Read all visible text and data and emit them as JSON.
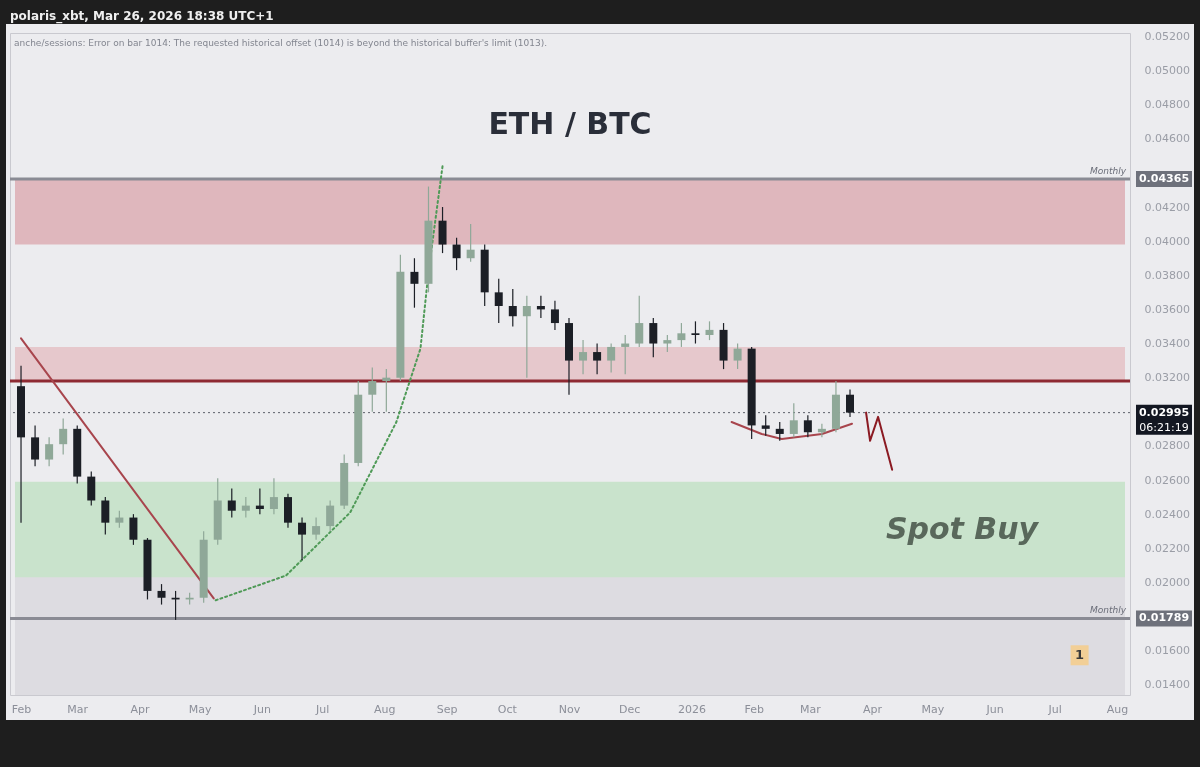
{
  "chart_data": {
    "type": "candlestick",
    "title": "ETH / BTC",
    "annotations": [
      "polaris_xbt, Mar 26, 2026 18:38 UTC+1",
      "anche/sessions: Error on bar 1014: The requested historical offset (1014) is beyond the historical buffer's limit (1013).",
      "06:21:19",
      "1",
      "Monthly",
      "Monthly"
    ],
    "x": [
      "2025-02-01",
      "2025-02-08",
      "2025-02-15",
      "2025-02-22",
      "2025-03-01",
      "2025-03-08",
      "2025-03-15",
      "2025-03-22",
      "2025-03-29",
      "2025-04-05",
      "2025-04-12",
      "2025-04-19",
      "2025-04-26",
      "2025-05-03",
      "2025-05-10",
      "2025-05-17",
      "2025-05-24",
      "2025-05-31",
      "2025-06-07",
      "2025-06-14",
      "2025-06-21",
      "2025-06-28",
      "2025-07-05",
      "2025-07-12",
      "2025-07-19",
      "2025-07-26",
      "2025-08-02",
      "2025-08-09",
      "2025-08-16",
      "2025-08-23",
      "2025-08-30",
      "2025-09-06",
      "2025-09-13",
      "2025-09-20",
      "2025-09-27",
      "2025-10-04",
      "2025-10-11",
      "2025-10-18",
      "2025-10-25",
      "2025-11-01",
      "2025-11-08",
      "2025-11-15",
      "2025-11-22",
      "2025-11-29",
      "2025-12-06",
      "2025-12-13",
      "2025-12-20",
      "2025-12-27",
      "2026-01-03",
      "2026-01-10",
      "2026-01-17",
      "2026-01-24",
      "2026-01-31",
      "2026-02-07",
      "2026-02-14",
      "2026-02-21",
      "2026-02-28",
      "2026-03-07",
      "2026-03-14",
      "2026-03-21"
    ],
    "ohlc": [
      [
        0.0315,
        0.0327,
        0.0235,
        0.0285
      ],
      [
        0.0285,
        0.0292,
        0.0268,
        0.0272
      ],
      [
        0.0272,
        0.0285,
        0.0268,
        0.0281
      ],
      [
        0.0281,
        0.0296,
        0.0275,
        0.029
      ],
      [
        0.029,
        0.0292,
        0.0258,
        0.0262
      ],
      [
        0.0262,
        0.0265,
        0.0245,
        0.0248
      ],
      [
        0.0248,
        0.025,
        0.0228,
        0.0235
      ],
      [
        0.0235,
        0.0242,
        0.0232,
        0.0238
      ],
      [
        0.0238,
        0.024,
        0.0222,
        0.0225
      ],
      [
        0.0225,
        0.0226,
        0.019,
        0.0195
      ],
      [
        0.0195,
        0.0199,
        0.0187,
        0.0191
      ],
      [
        0.0191,
        0.0195,
        0.0178,
        0.019
      ],
      [
        0.019,
        0.0194,
        0.0187,
        0.0191
      ],
      [
        0.0191,
        0.023,
        0.0188,
        0.0225
      ],
      [
        0.0225,
        0.0261,
        0.0222,
        0.0248
      ],
      [
        0.0248,
        0.0255,
        0.0238,
        0.0242
      ],
      [
        0.0242,
        0.025,
        0.0238,
        0.0245
      ],
      [
        0.0245,
        0.0255,
        0.024,
        0.0243
      ],
      [
        0.0243,
        0.0261,
        0.024,
        0.025
      ],
      [
        0.025,
        0.0252,
        0.0232,
        0.0235
      ],
      [
        0.0235,
        0.0238,
        0.0213,
        0.0228
      ],
      [
        0.0228,
        0.0238,
        0.0225,
        0.0233
      ],
      [
        0.0233,
        0.0248,
        0.023,
        0.0245
      ],
      [
        0.0245,
        0.0275,
        0.0243,
        0.027
      ],
      [
        0.027,
        0.0318,
        0.0268,
        0.031
      ],
      [
        0.031,
        0.0326,
        0.03,
        0.0318
      ],
      [
        0.0318,
        0.0325,
        0.03,
        0.032
      ],
      [
        0.032,
        0.0392,
        0.0318,
        0.0382
      ],
      [
        0.0382,
        0.039,
        0.0361,
        0.0375
      ],
      [
        0.0375,
        0.0432,
        0.037,
        0.0412
      ],
      [
        0.0412,
        0.042,
        0.0393,
        0.0398
      ],
      [
        0.0398,
        0.0402,
        0.0383,
        0.039
      ],
      [
        0.039,
        0.041,
        0.0388,
        0.0395
      ],
      [
        0.0395,
        0.0398,
        0.0362,
        0.037
      ],
      [
        0.037,
        0.0378,
        0.0352,
        0.0362
      ],
      [
        0.0362,
        0.0372,
        0.035,
        0.0356
      ],
      [
        0.0356,
        0.0368,
        0.032,
        0.0362
      ],
      [
        0.0362,
        0.0368,
        0.0355,
        0.036
      ],
      [
        0.036,
        0.0365,
        0.0348,
        0.0352
      ],
      [
        0.0352,
        0.0355,
        0.031,
        0.033
      ],
      [
        0.033,
        0.0342,
        0.0322,
        0.0335
      ],
      [
        0.0335,
        0.034,
        0.0322,
        0.033
      ],
      [
        0.033,
        0.034,
        0.0323,
        0.0338
      ],
      [
        0.0338,
        0.0345,
        0.0322,
        0.034
      ],
      [
        0.034,
        0.0368,
        0.0338,
        0.0352
      ],
      [
        0.0352,
        0.0355,
        0.0332,
        0.034
      ],
      [
        0.034,
        0.0345,
        0.0335,
        0.0342
      ],
      [
        0.0342,
        0.0352,
        0.0338,
        0.0346
      ],
      [
        0.0346,
        0.0353,
        0.034,
        0.0345
      ],
      [
        0.0345,
        0.0353,
        0.0342,
        0.0348
      ],
      [
        0.0348,
        0.0352,
        0.0325,
        0.033
      ],
      [
        0.033,
        0.034,
        0.0325,
        0.0337
      ],
      [
        0.0337,
        0.0338,
        0.0284,
        0.0292
      ],
      [
        0.0292,
        0.0298,
        0.0286,
        0.029
      ],
      [
        0.029,
        0.0294,
        0.0283,
        0.0287
      ],
      [
        0.0287,
        0.0305,
        0.0285,
        0.0295
      ],
      [
        0.0295,
        0.0298,
        0.0285,
        0.0288
      ],
      [
        0.0288,
        0.0293,
        0.0285,
        0.029
      ],
      [
        0.029,
        0.0318,
        0.0288,
        0.031
      ],
      [
        0.031,
        0.0313,
        0.0297,
        0.02995
      ]
    ],
    "colors": [
      "#1c1f26",
      "#1c1f26",
      "#8fa898",
      "#8fa898",
      "#1c1f26",
      "#1c1f26",
      "#1c1f26",
      "#8fa898",
      "#1c1f26",
      "#1c1f26",
      "#1c1f26",
      "#1c1f26",
      "#8fa898",
      "#8fa898",
      "#8fa898",
      "#1c1f26",
      "#8fa898",
      "#1c1f26",
      "#8fa898",
      "#1c1f26",
      "#1c1f26",
      "#8fa898",
      "#8fa898",
      "#8fa898",
      "#8fa898",
      "#8fa898",
      "#8fa898",
      "#8fa898",
      "#1c1f26",
      "#8fa898",
      "#1c1f26",
      "#1c1f26",
      "#8fa898",
      "#1c1f26",
      "#1c1f26",
      "#1c1f26",
      "#8fa898",
      "#1c1f26",
      "#1c1f26",
      "#1c1f26",
      "#8fa898",
      "#1c1f26",
      "#8fa898",
      "#8fa898",
      "#8fa898",
      "#1c1f26",
      "#8fa898",
      "#8fa898",
      "#1c1f26",
      "#8fa898",
      "#1c1f26",
      "#8fa898",
      "#1c1f26",
      "#1c1f26",
      "#1c1f26",
      "#8fa898",
      "#1c1f26",
      "#8fa898",
      "#8fa898",
      "#1c1f26"
    ],
    "series": [
      {
        "type": "line",
        "color": "#a8454d",
        "line_style": "solid",
        "x": [
          "2025-02-01",
          "2025-05-08"
        ],
        "values": [
          0.0343,
          0.01906
        ]
      },
      {
        "type": "line",
        "color": "#4f9a57",
        "line_style": "dotted",
        "x": [
          "2025-05-09",
          "2025-06-13",
          "2025-07-15",
          "2025-08-07",
          "2025-08-19",
          "2025-08-23",
          "2025-08-30"
        ],
        "values": [
          0.01895,
          0.0204,
          0.0241,
          0.0294,
          0.0337,
          0.0382,
          0.0444
        ]
      },
      {
        "type": "line",
        "color": "#a8454d",
        "line_style": "solid",
        "x": [
          "2026-01-21",
          "2026-02-05",
          "2026-02-15",
          "2026-03-07",
          "2026-03-22"
        ],
        "values": [
          0.0294,
          0.0287,
          0.0284,
          0.0287,
          0.0293
        ]
      },
      {
        "type": "line",
        "color": "#8b1a22",
        "line_style": "solid",
        "x": [
          "2026-03-29",
          "2026-03-31",
          "2026-04-04",
          "2026-04-11"
        ],
        "values": [
          0.02995,
          0.0283,
          0.0297,
          0.0266
        ]
      }
    ],
    "xlim": [
      "2025-01-29",
      "2026-08-05"
    ],
    "xticks": [
      {
        "value": "2025-02-01",
        "label": "Feb"
      },
      {
        "value": "2025-03-01",
        "label": "Mar"
      },
      {
        "value": "2025-04-01",
        "label": "Apr"
      },
      {
        "value": "2025-05-01",
        "label": "May"
      },
      {
        "value": "2025-06-01",
        "label": "Jun"
      },
      {
        "value": "2025-07-01",
        "label": "Jul"
      },
      {
        "value": "2025-08-01",
        "label": "Aug"
      },
      {
        "value": "2025-09-01",
        "label": "Sep"
      },
      {
        "value": "2025-10-01",
        "label": "Oct"
      },
      {
        "value": "2025-11-01",
        "label": "Nov"
      },
      {
        "value": "2025-12-01",
        "label": "Dec"
      },
      {
        "value": "2026-01-01",
        "label": "2026"
      },
      {
        "value": "2026-02-01",
        "label": "Feb"
      },
      {
        "value": "2026-03-01",
        "label": "Mar"
      },
      {
        "value": "2026-04-01",
        "label": "Apr"
      },
      {
        "value": "2026-05-01",
        "label": "May"
      },
      {
        "value": "2026-06-01",
        "label": "Jun"
      },
      {
        "value": "2026-07-01",
        "label": "Jul"
      },
      {
        "value": "2026-08-01",
        "label": "Aug"
      }
    ],
    "ylim": [
      0.0134,
      0.0522
    ],
    "yticks": [
      {
        "value": 0.014,
        "label": "0.01400"
      },
      {
        "value": 0.016,
        "label": "0.01600"
      },
      {
        "value": 0.02,
        "label": "0.02000"
      },
      {
        "value": 0.022,
        "label": "0.02200"
      },
      {
        "value": 0.024,
        "label": "0.02400"
      },
      {
        "value": 0.026,
        "label": "0.02600"
      },
      {
        "value": 0.028,
        "label": "0.02800"
      },
      {
        "value": 0.032,
        "label": "0.03200"
      },
      {
        "value": 0.034,
        "label": "0.03400"
      },
      {
        "value": 0.036,
        "label": "0.03600"
      },
      {
        "value": 0.038,
        "label": "0.03800"
      },
      {
        "value": 0.04,
        "label": "0.04000"
      },
      {
        "value": 0.042,
        "label": "0.04200"
      },
      {
        "value": 0.046,
        "label": "0.04600"
      },
      {
        "value": 0.048,
        "label": "0.04800"
      },
      {
        "value": 0.05,
        "label": "0.05000"
      },
      {
        "value": 0.052,
        "label": "0.05200"
      }
    ],
    "bands": [
      {
        "axis": "y",
        "from": 0.0398,
        "to": 0.0436,
        "color": "#dfb7bd"
      },
      {
        "axis": "y",
        "from": 0.0318,
        "to": 0.0338,
        "color": "#e6c8cc"
      },
      {
        "axis": "y",
        "from": 0.0134,
        "to": 0.0221,
        "color": "#dddce1"
      },
      {
        "axis": "y",
        "from": 0.0203,
        "to": 0.0259,
        "label": "Spot Buy",
        "color": "#c9e3cc"
      }
    ],
    "ref_lines": [
      {
        "axis": "y",
        "value": 0.04365,
        "label": "0.04365",
        "color": "#8a8b94",
        "line_style": "solid"
      },
      {
        "axis": "y",
        "value": 0.01789,
        "label": "0.01789",
        "color": "#8a8b94",
        "line_style": "solid"
      },
      {
        "axis": "y",
        "value": 0.0318,
        "color": "#8e2a33",
        "line_style": "solid"
      },
      {
        "axis": "y",
        "value": 0.02995,
        "label": "0.02995",
        "color": "#5d606b",
        "line_style": "dotted"
      }
    ]
  }
}
